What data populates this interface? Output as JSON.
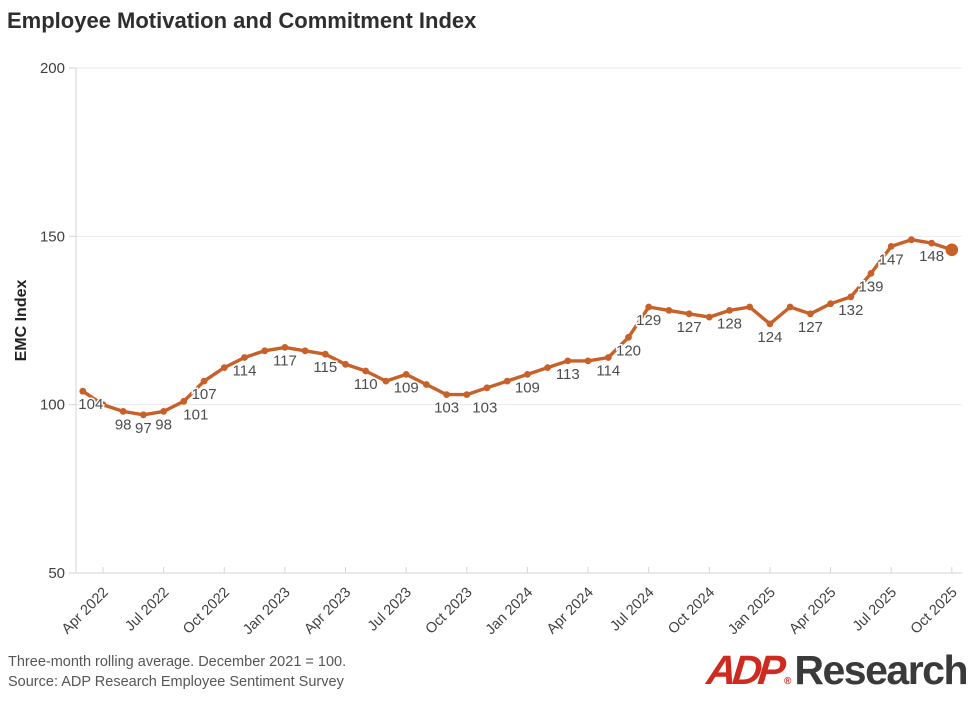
{
  "title": "Employee Motivation and Commitment Index",
  "footer": {
    "line1": "Three-month rolling average. December 2021 = 100.",
    "line2": "Source: ADP Research Employee Sentiment Survey"
  },
  "logo": {
    "brand": "ADP",
    "reg": "®",
    "suffix": "Research"
  },
  "colors": {
    "line": "#C8602A",
    "label_text": "#4d4d4d",
    "tick_text": "#404040",
    "grid": "#ebebeb",
    "axis": "#d6d6d6",
    "title_text": "#2e2e2e"
  },
  "chart_data": {
    "type": "line",
    "title": "Employee Motivation and Commitment Index",
    "xlabel": "",
    "ylabel": "EMC Index",
    "ylim": [
      50,
      200
    ],
    "yticks": [
      200,
      150,
      100,
      50
    ],
    "xtick_labels": [
      "Apr 2022",
      "Jul 2022",
      "Oct 2022",
      "Jan 2023",
      "Apr 2023",
      "Jul 2023",
      "Oct 2023",
      "Jan 2024",
      "Apr 2024",
      "Jul 2024",
      "Oct 2024",
      "Jan 2025",
      "Apr 2025",
      "Jul 2025",
      "Oct 2025"
    ],
    "grid": "horizontal",
    "legend": "none",
    "x": [
      "Mar 2022",
      "Apr 2022",
      "May 2022",
      "Jun 2022",
      "Jul 2022",
      "Aug 2022",
      "Sep 2022",
      "Oct 2022",
      "Nov 2022",
      "Dec 2022",
      "Jan 2023",
      "Feb 2023",
      "Mar 2023",
      "Apr 2023",
      "May 2023",
      "Jun 2023",
      "Jul 2023",
      "Aug 2023",
      "Sep 2023",
      "Oct 2023",
      "Nov 2023",
      "Dec 2023",
      "Jan 2024",
      "Feb 2024",
      "Mar 2024",
      "Apr 2024",
      "May 2024",
      "Jun 2024",
      "Jul 2024",
      "Aug 2024",
      "Sep 2024",
      "Oct 2024",
      "Nov 2024",
      "Dec 2024",
      "Jan 2025",
      "Feb 2025",
      "Mar 2025",
      "Apr 2025",
      "May 2025",
      "Jun 2025",
      "Jul 2025",
      "Aug 2025",
      "Sep 2025",
      "Oct 2025"
    ],
    "values": [
      104,
      100,
      98,
      97,
      98,
      101,
      107,
      111,
      114,
      116,
      117,
      116,
      115,
      112,
      110,
      107,
      109,
      106,
      103,
      103,
      105,
      107,
      109,
      111,
      113,
      113,
      114,
      120,
      129,
      128,
      127,
      126,
      128,
      129,
      124,
      129,
      127,
      130,
      132,
      139,
      147,
      149,
      148,
      146
    ],
    "point_labels": [
      104,
      null,
      98,
      97,
      98,
      101,
      107,
      null,
      114,
      null,
      117,
      null,
      115,
      null,
      110,
      null,
      109,
      null,
      103,
      103,
      null,
      null,
      109,
      null,
      113,
      null,
      114,
      120,
      129,
      null,
      127,
      null,
      128,
      null,
      124,
      null,
      127,
      null,
      132,
      139,
      147,
      null,
      148,
      null
    ]
  }
}
